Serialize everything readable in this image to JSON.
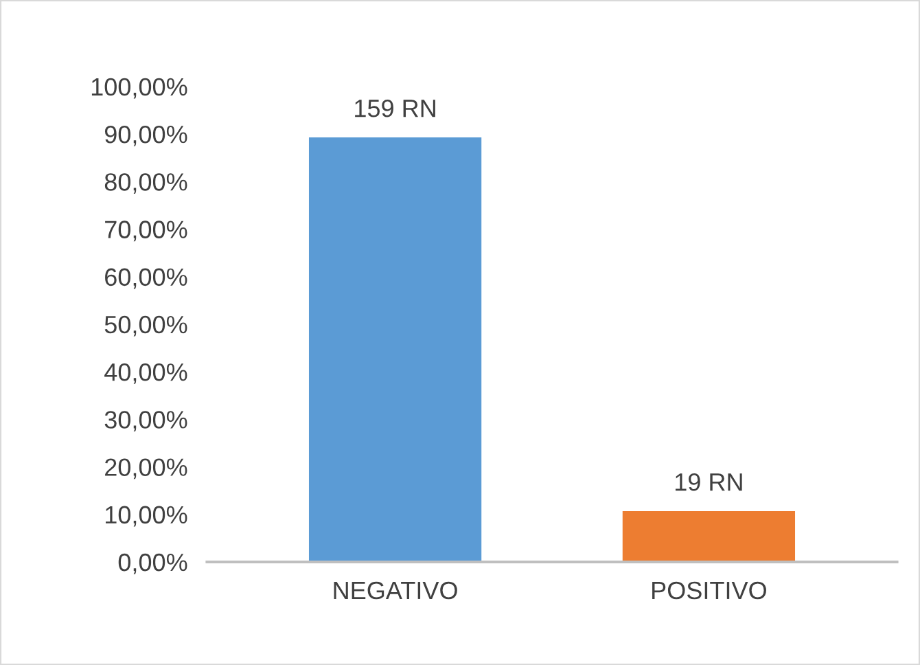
{
  "chart_data": {
    "type": "bar",
    "categories": [
      "NEGATIVO",
      "POSITIVO"
    ],
    "values": [
      89.3,
      10.7
    ],
    "colors": [
      "#5b9bd5",
      "#ed7d31"
    ],
    "annotations": [
      {
        "text": "159 RN",
        "x": "NEGATIVO",
        "y": 89.3
      },
      {
        "text": "19 RN",
        "x": "POSITIVO",
        "y": 10.7
      }
    ],
    "ylim": [
      0,
      100
    ],
    "yticks": [
      {
        "value": 0,
        "label": "0,00%"
      },
      {
        "value": 10,
        "label": "10,00%"
      },
      {
        "value": 20,
        "label": "20,00%"
      },
      {
        "value": 30,
        "label": "30,00%"
      },
      {
        "value": 40,
        "label": "40,00%"
      },
      {
        "value": 50,
        "label": "50,00%"
      },
      {
        "value": 60,
        "label": "60,00%"
      },
      {
        "value": 70,
        "label": "70,00%"
      },
      {
        "value": 80,
        "label": "80,00%"
      },
      {
        "value": 90,
        "label": "90,00%"
      },
      {
        "value": 100,
        "label": "100,00%"
      }
    ],
    "grid": false,
    "legend": false
  }
}
